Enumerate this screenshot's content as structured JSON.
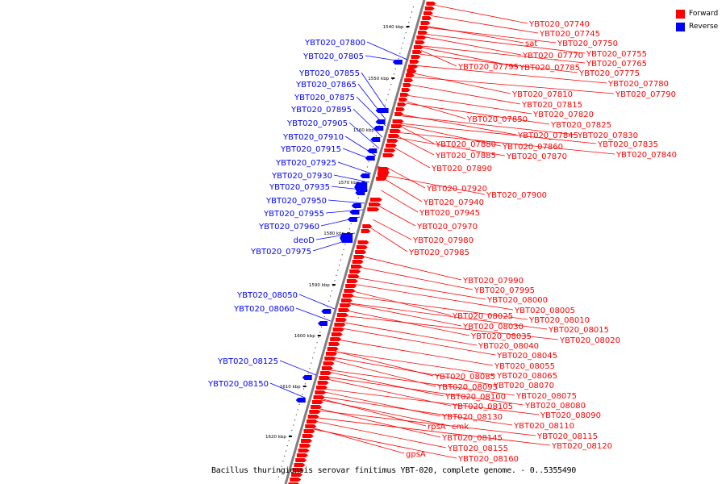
{
  "legend": {
    "forward_label": "Forward",
    "reverse_label": "Reverse",
    "forward_color": "#ff0000",
    "reverse_color": "#0000ff"
  },
  "caption": "Bacillus thuringiensis serovar finitimus YBT-020, complete genome. - 0..5355490",
  "scale_labels": [
    "1540 kbp",
    "1550 kbp",
    "1560 kbp",
    "1570 kbp",
    "1580 kbp",
    "1590 kbp",
    "1600 kbp",
    "1610 kbp",
    "1620 kbp"
  ],
  "reverse_labels": [
    "YBT020_07800",
    "YBT020_07805",
    "YBT020_07855",
    "YBT020_07865",
    "YBT020_07875",
    "YBT020_07895",
    "YBT020_07905",
    "YBT020_07910",
    "YBT020_07915",
    "YBT020_07925",
    "YBT020_07930",
    "YBT020_07935",
    "YBT020_07950",
    "YBT020_07955",
    "YBT020_07960",
    "deoD",
    "YBT020_07975",
    "YBT020_08050",
    "YBT020_08060",
    "YBT020_08125",
    "YBT020_08150"
  ],
  "forward_labels": [
    "YBT020_07740",
    "YBT020_07745",
    "sat",
    "YBT020_07750",
    "YBT020_07755",
    "YBT020_07770",
    "YBT020_07765",
    "YBT020_07795",
    "YBT020_07785",
    "YBT020_07775",
    "YBT020_07780",
    "YBT020_07790",
    "YBT020_07810",
    "YBT020_07815",
    "YBT020_07820",
    "YBT020_07850",
    "YBT020_07825",
    "YBT020_07845",
    "YBT020_07830",
    "YBT020_07880",
    "YBT020_07860",
    "YBT020_07835",
    "YBT020_07885",
    "YBT020_07870",
    "YBT020_07840",
    "YBT020_07890",
    "YBT020_07920",
    "YBT020_07900",
    "YBT020_07940",
    "YBT020_07945",
    "YBT020_07970",
    "YBT020_07980",
    "YBT020_07985",
    "YBT020_07990",
    "YBT020_07995",
    "YBT020_08000",
    "YBT020_08005",
    "YBT020_08025",
    "YBT020_08010",
    "YBT020_08030",
    "YBT020_08015",
    "YBT020_08035",
    "YBT020_08020",
    "YBT020_08040",
    "YBT020_08045",
    "YBT020_08055",
    "YBT020_08085",
    "YBT020_08065",
    "YBT020_08070",
    "YBT020_08095",
    "YBT020_08075",
    "YBT020_08100",
    "YBT020_08080",
    "YBT020_08105",
    "YBT020_08090",
    "YBT020_08130",
    "YBT020_08110",
    "rpsA",
    "cmk",
    "YBT020_08115",
    "YBT020_08145",
    "YBT020_08120",
    "YBT020_08155",
    "gpsA",
    "YBT020_08160"
  ]
}
